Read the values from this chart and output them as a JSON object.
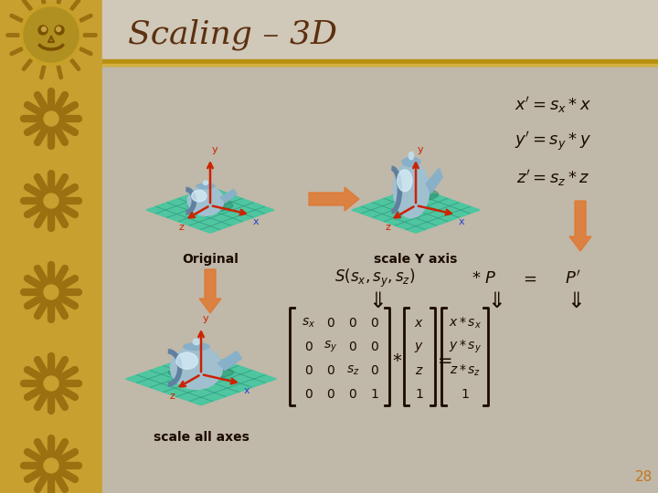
{
  "title": "Scaling – 3D",
  "title_color": "#5c3010",
  "title_fontsize": 26,
  "sidebar_color": "#c8a030",
  "main_bg_color": "#c0b8a8",
  "header_bg_color": "#d0c8b8",
  "rule_color": "#b89010",
  "label_original": "Original",
  "label_scale_y": "scale Y axis",
  "label_scale_all": "scale all axes",
  "page_number": "28",
  "page_number_color": "#c07820",
  "text_color": "#1a0a00",
  "arrow_color": "#e07830",
  "teal_color": "#40c8a0",
  "teal_dark": "#309880",
  "teapot_body": "#a8c8d8",
  "teapot_highlight": "#d8eef8",
  "axis_color_red": "#cc2200",
  "axis_color_blue": "#2244cc"
}
